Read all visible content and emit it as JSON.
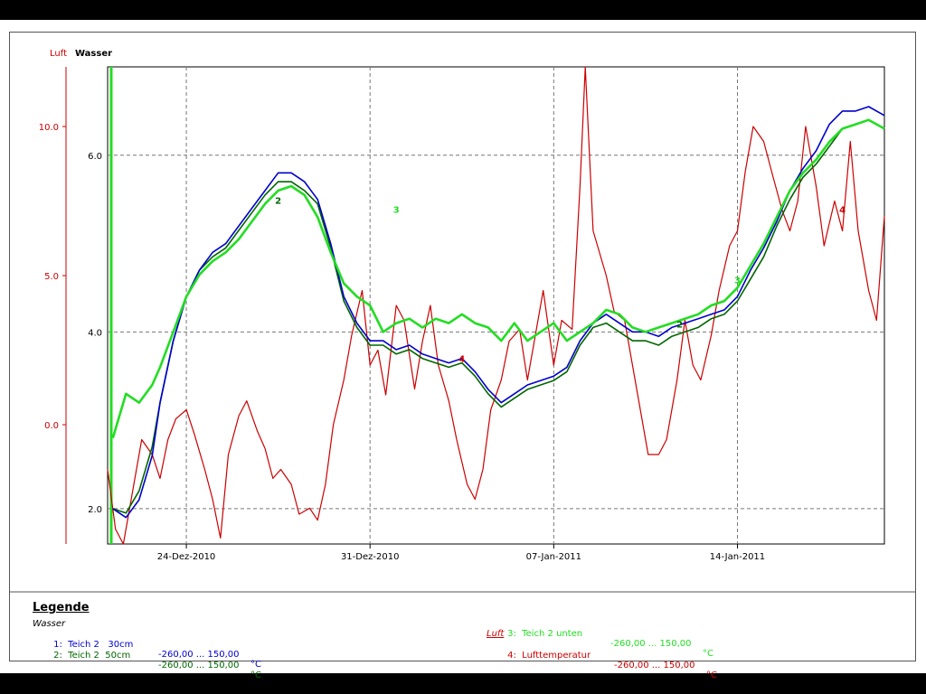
{
  "chart_data": {
    "type": "line",
    "axis_headers": {
      "left": "Luft",
      "right": "Wasser"
    },
    "y_ticks_luft": [
      "10.0",
      "5.0",
      "0.0"
    ],
    "y_ticks_luft_values": [
      10,
      5,
      0
    ],
    "y_ticks_wasser": [
      "6.0",
      "4.0",
      "2.0"
    ],
    "y_ticks_wasser_values": [
      6,
      4,
      2
    ],
    "ylim_luft": [
      -4,
      12
    ],
    "ylim_wasser": [
      1.6,
      7.0
    ],
    "x_ticks": [
      "24-Dez-2010",
      "31-Dez-2010",
      "07-Jan-2011",
      "14-Jan-2011"
    ],
    "x_tick_values": [
      2.0,
      9.0,
      16.0,
      23.0
    ],
    "xlim": [
      -1.0,
      28.6
    ],
    "grid": true,
    "series": [
      {
        "name": "Teich 2   30cm",
        "axis": "wasser",
        "color": "#0000CC",
        "marker": "1",
        "x": [
          -0.8,
          -0.3,
          0.2,
          0.7,
          1.0,
          1.5,
          2.0,
          2.5,
          3.0,
          3.5,
          4.0,
          4.5,
          5.0,
          5.5,
          6.0,
          6.5,
          7.0,
          7.5,
          8.0,
          8.5,
          9.0,
          9.5,
          10.0,
          10.5,
          11.0,
          11.5,
          12.0,
          12.5,
          13.0,
          13.5,
          14.0,
          14.5,
          15.0,
          15.5,
          16.0,
          16.5,
          17.0,
          17.5,
          18.0,
          18.5,
          19.0,
          19.5,
          20.0,
          20.5,
          21.0,
          21.5,
          22.0,
          22.5,
          23.0,
          23.5,
          24.0,
          24.5,
          25.0,
          25.5,
          26.0,
          26.5,
          27.0,
          27.5,
          28.0,
          28.6
        ],
        "y": [
          2.0,
          1.9,
          2.1,
          2.6,
          3.2,
          3.9,
          4.4,
          4.7,
          4.9,
          5.0,
          5.2,
          5.4,
          5.6,
          5.8,
          5.8,
          5.7,
          5.5,
          5.0,
          4.4,
          4.1,
          3.9,
          3.9,
          3.8,
          3.85,
          3.75,
          3.7,
          3.65,
          3.7,
          3.55,
          3.35,
          3.2,
          3.3,
          3.4,
          3.45,
          3.5,
          3.6,
          3.9,
          4.1,
          4.2,
          4.1,
          4.0,
          4.0,
          3.95,
          4.05,
          4.1,
          4.15,
          4.2,
          4.25,
          4.4,
          4.7,
          4.95,
          5.25,
          5.6,
          5.85,
          6.05,
          6.35,
          6.5,
          6.5,
          6.55,
          6.45
        ]
      },
      {
        "name": "Teich 2  50cm",
        "axis": "wasser",
        "color": "#006600",
        "marker": "2",
        "x": [
          -0.8,
          -0.3,
          0.2,
          0.7,
          1.0,
          1.5,
          2.0,
          2.5,
          3.0,
          3.5,
          4.0,
          4.5,
          5.0,
          5.5,
          6.0,
          6.5,
          7.0,
          7.5,
          8.0,
          8.5,
          9.0,
          9.5,
          10.0,
          10.5,
          11.0,
          11.5,
          12.0,
          12.5,
          13.0,
          13.5,
          14.0,
          14.5,
          15.0,
          15.5,
          16.0,
          16.5,
          17.0,
          17.5,
          18.0,
          18.5,
          19.0,
          19.5,
          20.0,
          20.5,
          21.0,
          21.5,
          22.0,
          22.5,
          23.0,
          23.5,
          24.0,
          24.5,
          25.0,
          25.5,
          26.0,
          26.5,
          27.0,
          27.5,
          28.0,
          28.6
        ],
        "y": [
          2.0,
          1.95,
          2.2,
          2.7,
          3.2,
          3.9,
          4.4,
          4.7,
          4.85,
          4.95,
          5.15,
          5.35,
          5.55,
          5.7,
          5.7,
          5.6,
          5.45,
          4.95,
          4.35,
          4.05,
          3.85,
          3.85,
          3.75,
          3.8,
          3.7,
          3.65,
          3.6,
          3.65,
          3.5,
          3.3,
          3.15,
          3.25,
          3.35,
          3.4,
          3.45,
          3.55,
          3.85,
          4.05,
          4.1,
          4.0,
          3.9,
          3.9,
          3.85,
          3.95,
          4.0,
          4.05,
          4.15,
          4.2,
          4.35,
          4.6,
          4.85,
          5.2,
          5.5,
          5.75,
          5.9,
          6.1,
          6.3,
          6.35,
          6.4,
          6.3
        ]
      },
      {
        "name": "Teich 2 unten",
        "axis": "wasser",
        "color": "#22DD22",
        "marker": "3",
        "x": [
          -0.8,
          -0.3,
          0.2,
          0.7,
          1.0,
          1.5,
          2.0,
          2.5,
          3.0,
          3.5,
          4.0,
          4.5,
          5.0,
          5.5,
          6.0,
          6.5,
          7.0,
          7.5,
          8.0,
          8.5,
          9.0,
          9.5,
          10.0,
          10.5,
          11.0,
          11.5,
          12.0,
          12.5,
          13.0,
          13.5,
          14.0,
          14.5,
          15.0,
          15.5,
          16.0,
          16.5,
          17.0,
          17.5,
          18.0,
          18.5,
          19.0,
          19.5,
          20.0,
          20.5,
          21.0,
          21.5,
          22.0,
          22.5,
          23.0,
          23.5,
          24.0,
          24.5,
          25.0,
          25.5,
          26.0,
          26.5,
          27.0,
          27.5,
          28.0,
          28.6
        ],
        "y": [
          2.8,
          3.3,
          3.2,
          3.4,
          3.6,
          4.0,
          4.4,
          4.65,
          4.8,
          4.9,
          5.05,
          5.25,
          5.45,
          5.6,
          5.65,
          5.55,
          5.3,
          4.9,
          4.55,
          4.4,
          4.3,
          4.0,
          4.1,
          4.15,
          4.05,
          4.15,
          4.1,
          4.2,
          4.1,
          4.05,
          3.9,
          4.1,
          3.9,
          4.0,
          4.1,
          3.9,
          4.0,
          4.1,
          4.25,
          4.2,
          4.05,
          4.0,
          4.05,
          4.1,
          4.15,
          4.2,
          4.3,
          4.35,
          4.5,
          4.75,
          5.0,
          5.3,
          5.6,
          5.8,
          5.95,
          6.15,
          6.3,
          6.35,
          6.4,
          6.3
        ]
      },
      {
        "name": "Lufttemperatur",
        "axis": "luft",
        "color": "#CC0000",
        "marker": "4",
        "x": [
          -1.0,
          -0.7,
          -0.4,
          0.0,
          0.3,
          0.7,
          1.0,
          1.3,
          1.6,
          2.0,
          2.3,
          2.7,
          3.0,
          3.3,
          3.6,
          4.0,
          4.3,
          4.7,
          5.0,
          5.3,
          5.6,
          6.0,
          6.3,
          6.7,
          7.0,
          7.3,
          7.6,
          8.0,
          8.3,
          8.7,
          9.0,
          9.3,
          9.6,
          10.0,
          10.3,
          10.7,
          11.0,
          11.3,
          11.6,
          12.0,
          12.3,
          12.7,
          13.0,
          13.3,
          13.6,
          14.0,
          14.3,
          14.7,
          15.0,
          15.3,
          15.6,
          16.0,
          16.3,
          16.7,
          17.0,
          17.2,
          17.5,
          18.0,
          18.3,
          18.7,
          19.0,
          19.3,
          19.6,
          20.0,
          20.3,
          20.7,
          21.0,
          21.3,
          21.6,
          22.0,
          22.3,
          22.7,
          23.0,
          23.3,
          23.6,
          24.0,
          24.3,
          24.7,
          25.0,
          25.3,
          25.6,
          26.0,
          26.3,
          26.7,
          27.0,
          27.3,
          27.6,
          28.0,
          28.3,
          28.6
        ],
        "y": [
          -1.5,
          -3.5,
          -4.0,
          -2.0,
          -0.5,
          -1.0,
          -1.8,
          -0.5,
          0.2,
          0.5,
          -0.3,
          -1.5,
          -2.5,
          -3.8,
          -1.0,
          0.3,
          0.8,
          -0.2,
          -0.8,
          -1.8,
          -1.5,
          -2.0,
          -3.0,
          -2.8,
          -3.2,
          -2.0,
          0.0,
          1.5,
          3.0,
          4.5,
          2.0,
          2.5,
          1.0,
          4.0,
          3.5,
          1.2,
          2.8,
          4.0,
          2.0,
          0.8,
          -0.5,
          -2.0,
          -2.5,
          -1.5,
          0.5,
          1.5,
          2.8,
          3.2,
          1.5,
          3.0,
          4.5,
          2.0,
          3.5,
          3.2,
          8.0,
          12.0,
          6.5,
          5.0,
          3.8,
          3.5,
          2.0,
          0.5,
          -1.0,
          -1.0,
          -0.5,
          1.5,
          3.5,
          2.0,
          1.5,
          3.0,
          4.5,
          6.0,
          6.5,
          8.5,
          10.0,
          9.5,
          8.5,
          7.2,
          6.5,
          7.5,
          10.0,
          8.0,
          6.0,
          7.5,
          6.5,
          9.5,
          6.5,
          4.5,
          3.5,
          7.0
        ]
      }
    ],
    "point_labels": [
      {
        "text": "2",
        "axis": "wasser",
        "x": 5.5,
        "y": 5.45,
        "color": "#006600"
      },
      {
        "text": "3",
        "axis": "wasser",
        "x": 10.0,
        "y": 5.35,
        "color": "#22DD22"
      },
      {
        "text": "2",
        "axis": "wasser",
        "x": 20.8,
        "y": 4.05,
        "color": "#006600"
      },
      {
        "text": "3",
        "axis": "wasser",
        "x": 23.0,
        "y": 4.55,
        "color": "#22DD22"
      },
      {
        "text": "4",
        "axis": "luft",
        "x": 12.5,
        "y": 2.1,
        "color": "#CC0000"
      },
      {
        "text": "4",
        "axis": "luft",
        "x": 27.0,
        "y": 7.1,
        "color": "#CC0000"
      }
    ]
  },
  "legend": {
    "title": "Legende",
    "group_wasser": "Wasser",
    "group_luft": "Luft",
    "entries": [
      {
        "label": "1:  Teich 2   30cm",
        "range": "-260,00 ... 150,00",
        "unit": "°C",
        "color": "#0000CC"
      },
      {
        "label": "2:  Teich 2  50cm",
        "range": "-260,00 ... 150,00",
        "unit": "°C",
        "color": "#006600"
      },
      {
        "label": "3:  Teich 2 unten",
        "range": "-260,00 ... 150,00",
        "unit": "°C",
        "color": "#22DD22"
      },
      {
        "label": "4:  Lufttemperatur",
        "range": "-260,00 ... 150,00",
        "unit": "°C",
        "color": "#CC0000"
      }
    ]
  }
}
